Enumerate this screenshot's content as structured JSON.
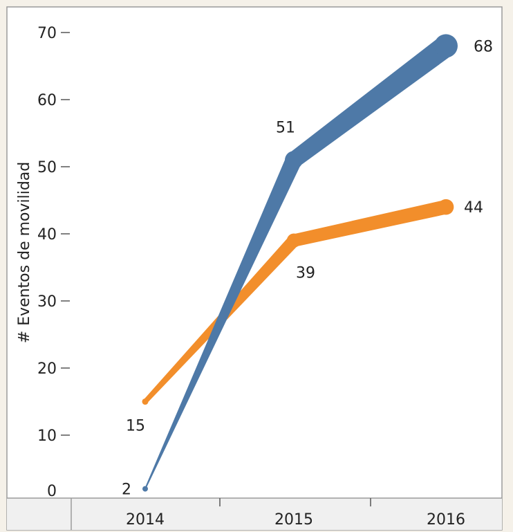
{
  "chart_data": {
    "type": "line",
    "x": [
      "2014",
      "2015",
      "2016"
    ],
    "ylabel": "# Eventos de movilidad",
    "xlabel": "",
    "ylim": [
      0,
      70
    ],
    "yticks": [
      0,
      10,
      20,
      30,
      40,
      50,
      60,
      70
    ],
    "grid": false,
    "legend": "none",
    "series": [
      {
        "values": [
          2,
          51,
          68
        ],
        "color": "#4e79a7"
      },
      {
        "values": [
          15,
          39,
          44
        ],
        "color": "#f28e2b"
      }
    ]
  }
}
